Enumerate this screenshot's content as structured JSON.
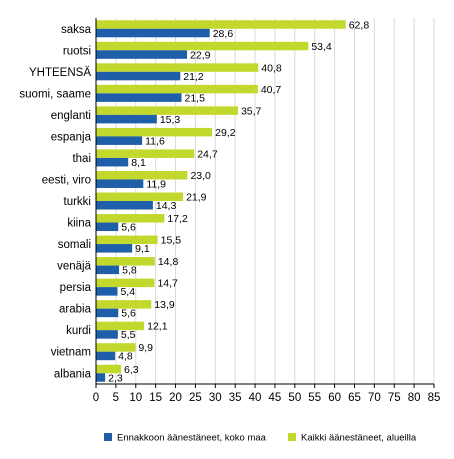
{
  "chart_data": {
    "type": "bar",
    "orientation": "horizontal",
    "categories": [
      "saksa",
      "ruotsi",
      "YHTEENSÄ",
      "suomi, saame",
      "englanti",
      "espanja",
      "thai",
      "eesti, viro",
      "turkki",
      "kiina",
      "somali",
      "venäjä",
      "persia",
      "arabia",
      "kurdi",
      "vietnam",
      "albania"
    ],
    "series": [
      {
        "name": "Kaikki äänestäneet, alueilla",
        "color": "#c3d82d",
        "values": [
          62.8,
          53.4,
          40.8,
          40.7,
          35.7,
          29.2,
          24.7,
          23.0,
          21.9,
          17.2,
          15.5,
          14.8,
          14.7,
          13.9,
          12.1,
          9.9,
          6.3
        ],
        "labels": [
          "62,8",
          "53,4",
          "40,8",
          "40,7",
          "35,7",
          "29,2",
          "24,7",
          "23,0",
          "21,9",
          "17,2",
          "15,5",
          "14,8",
          "14,7",
          "13,9",
          "12,1",
          "9,9",
          "6,3"
        ]
      },
      {
        "name": "Ennakkoon äänestäneet, koko maa",
        "color": "#1f5ea8",
        "values": [
          28.6,
          22.9,
          21.2,
          21.5,
          15.3,
          11.6,
          8.1,
          11.9,
          14.3,
          5.6,
          9.1,
          5.8,
          5.4,
          5.6,
          5.5,
          4.8,
          2.3
        ],
        "labels": [
          "28,6",
          "22,9",
          "21,2",
          "21,5",
          "15,3",
          "11,6",
          "8,1",
          "11,9",
          "14,3",
          "5,6",
          "9,1",
          "5,8",
          "5,4",
          "5,6",
          "5,5",
          "4,8",
          "2,3"
        ]
      }
    ],
    "xlim": [
      0,
      85
    ],
    "xticks": [
      0,
      5,
      10,
      15,
      20,
      25,
      30,
      35,
      40,
      45,
      50,
      55,
      60,
      65,
      70,
      75,
      80,
      85
    ],
    "grid": true,
    "legend_position": "bottom",
    "legend": [
      {
        "label": "Ennakkoon äänestäneet, koko maa",
        "color": "#1f5ea8"
      },
      {
        "label": "Kaikki äänestäneet, alueilla",
        "color": "#c3d82d"
      }
    ]
  }
}
